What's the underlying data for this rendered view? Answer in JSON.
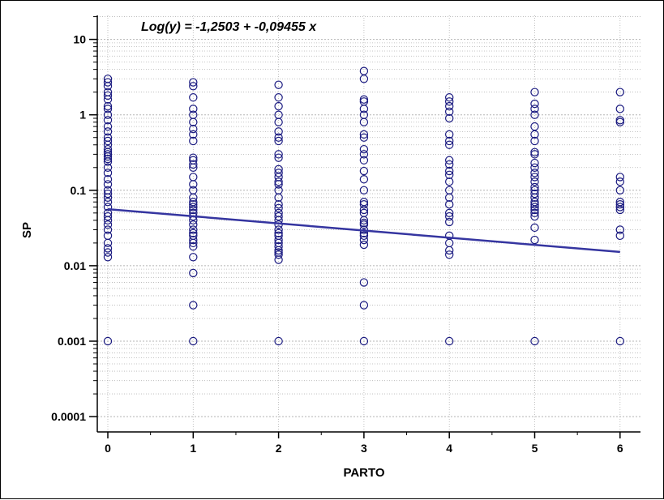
{
  "chart_data": {
    "type": "scatter",
    "title": "Log(y) = -1,2503   +   -0,09455   x",
    "xlabel": "PARTO",
    "ylabel": "SP",
    "xlim": [
      -0.15,
      6.3
    ],
    "ylim": [
      7e-05,
      20
    ],
    "y_scale": "log",
    "grid": true,
    "x_ticks": [
      "0",
      "1",
      "2",
      "3",
      "4",
      "5",
      "6"
    ],
    "y_ticks": [
      "0.0001",
      "0.001",
      "0.01",
      "0.1",
      "1",
      "10"
    ],
    "y_tick_values": [
      0.0001,
      0.001,
      0.01,
      0.1,
      1,
      10
    ],
    "regression": {
      "intercept_log10": -1.2503,
      "slope_log10": -0.09455,
      "x_range": [
        0,
        6
      ]
    },
    "colors": {
      "points": "#1a1a80",
      "line": "#3535a0",
      "grid": "#b4b4b4",
      "axis": "#000000"
    },
    "series": [
      {
        "x": 0,
        "values": [
          3.0,
          2.7,
          2.4,
          2.0,
          1.8,
          1.6,
          1.3,
          1.2,
          1.0,
          0.85,
          0.7,
          0.6,
          0.5,
          0.45,
          0.4,
          0.35,
          0.32,
          0.3,
          0.28,
          0.26,
          0.24,
          0.2,
          0.17,
          0.14,
          0.12,
          0.1,
          0.09,
          0.08,
          0.07,
          0.06,
          0.05,
          0.045,
          0.04,
          0.035,
          0.03,
          0.025,
          0.02,
          0.017,
          0.015,
          0.013,
          0.001
        ]
      },
      {
        "x": 1,
        "values": [
          2.7,
          2.4,
          1.7,
          1.2,
          1.0,
          0.8,
          0.65,
          0.55,
          0.45,
          0.27,
          0.25,
          0.22,
          0.2,
          0.15,
          0.12,
          0.1,
          0.08,
          0.07,
          0.065,
          0.06,
          0.055,
          0.05,
          0.045,
          0.04,
          0.035,
          0.03,
          0.027,
          0.025,
          0.022,
          0.02,
          0.018,
          0.013,
          0.008,
          0.003,
          0.001
        ]
      },
      {
        "x": 2,
        "values": [
          2.5,
          1.7,
          1.3,
          1.0,
          0.8,
          0.6,
          0.5,
          0.45,
          0.3,
          0.27,
          0.19,
          0.17,
          0.15,
          0.13,
          0.12,
          0.1,
          0.08,
          0.065,
          0.058,
          0.05,
          0.045,
          0.04,
          0.035,
          0.03,
          0.027,
          0.025,
          0.022,
          0.02,
          0.018,
          0.016,
          0.015,
          0.014,
          0.012,
          0.001
        ]
      },
      {
        "x": 3,
        "values": [
          3.8,
          3.0,
          1.6,
          1.5,
          1.2,
          1.0,
          0.8,
          0.55,
          0.5,
          0.35,
          0.3,
          0.25,
          0.18,
          0.14,
          0.1,
          0.07,
          0.065,
          0.055,
          0.05,
          0.04,
          0.037,
          0.035,
          0.03,
          0.027,
          0.025,
          0.022,
          0.019,
          0.006,
          0.003,
          0.001
        ]
      },
      {
        "x": 4,
        "values": [
          1.7,
          1.5,
          1.3,
          1.1,
          0.9,
          0.55,
          0.45,
          0.4,
          0.25,
          0.22,
          0.18,
          0.16,
          0.13,
          0.1,
          0.08,
          0.065,
          0.05,
          0.045,
          0.038,
          0.025,
          0.02,
          0.016,
          0.014,
          0.001
        ]
      },
      {
        "x": 5,
        "values": [
          2.0,
          1.4,
          1.2,
          1.0,
          0.7,
          0.55,
          0.45,
          0.32,
          0.3,
          0.23,
          0.2,
          0.17,
          0.15,
          0.13,
          0.11,
          0.1,
          0.09,
          0.08,
          0.07,
          0.065,
          0.06,
          0.055,
          0.05,
          0.045,
          0.032,
          0.022,
          0.001
        ]
      },
      {
        "x": 6,
        "values": [
          2.0,
          1.2,
          0.85,
          0.8,
          0.15,
          0.13,
          0.1,
          0.07,
          0.065,
          0.06,
          0.055,
          0.03,
          0.025,
          0.001
        ]
      }
    ]
  }
}
